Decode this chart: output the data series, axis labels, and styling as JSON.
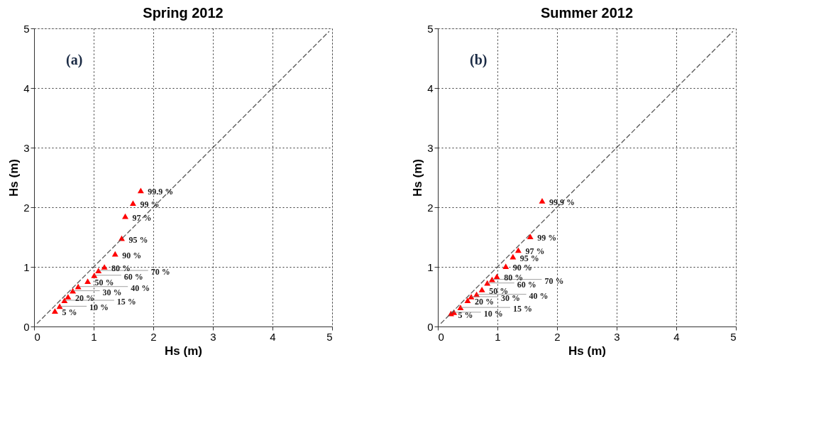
{
  "chart_data": [
    {
      "type": "scatter",
      "title": "Spring 2012",
      "xlabel": "Hs (m)",
      "ylabel": "Hs (m)",
      "xlim": [
        0,
        5
      ],
      "ylim": [
        0,
        5
      ],
      "xticks": [
        0,
        1,
        2,
        3,
        4,
        5
      ],
      "yticks": [
        0,
        1,
        2,
        3,
        4,
        5
      ],
      "grid": true,
      "marker": "triangle",
      "annotations": [
        "(a)",
        {
          "text": "5 %",
          "x": 0.35,
          "y": 0.26
        },
        {
          "text": "10 %",
          "x": 0.43,
          "y": 0.34
        },
        {
          "text": "15 %",
          "x": 0.51,
          "y": 0.44
        },
        {
          "text": "20 %",
          "x": 0.57,
          "y": 0.5
        },
        {
          "text": "30 %",
          "x": 0.65,
          "y": 0.6
        },
        {
          "text": "40 %",
          "x": 0.74,
          "y": 0.67
        },
        {
          "text": "50 %",
          "x": 0.9,
          "y": 0.76
        },
        {
          "text": "60 %",
          "x": 1.01,
          "y": 0.86
        },
        {
          "text": "70 %",
          "x": 1.08,
          "y": 0.94
        },
        {
          "text": "80 %",
          "x": 1.18,
          "y": 1.0
        },
        {
          "text": "90 %",
          "x": 1.36,
          "y": 1.22
        },
        {
          "text": "95 %",
          "x": 1.47,
          "y": 1.48
        },
        {
          "text": "97 %",
          "x": 1.53,
          "y": 1.85
        },
        {
          "text": "99 %",
          "x": 1.66,
          "y": 2.07
        },
        {
          "text": "99.9 %",
          "x": 1.79,
          "y": 2.28
        }
      ],
      "series": [
        {
          "type": "scatter",
          "color": "#ff0000",
          "x": [
            0.35,
            0.43,
            0.51,
            0.57,
            0.65,
            0.74,
            0.9,
            1.01,
            1.08,
            1.18,
            1.36,
            1.47,
            1.53,
            1.66,
            1.79
          ],
          "values": [
            0.26,
            0.34,
            0.44,
            0.5,
            0.6,
            0.67,
            0.76,
            0.86,
            0.94,
            1.0,
            1.22,
            1.48,
            1.85,
            2.07,
            2.28
          ]
        },
        {
          "type": "line",
          "color": "#555555",
          "line_style": "dashed",
          "marker": "none",
          "x": [
            0.05,
            4.95
          ],
          "values": [
            0.05,
            4.95
          ]
        }
      ]
    },
    {
      "type": "scatter",
      "title": "Summer 2012",
      "xlabel": "Hs (m)",
      "ylabel": "Hs (m)",
      "xlim": [
        0,
        5
      ],
      "ylim": [
        0,
        5
      ],
      "xticks": [
        0,
        1,
        2,
        3,
        4,
        5
      ],
      "yticks": [
        0,
        1,
        2,
        3,
        4,
        5
      ],
      "grid": true,
      "marker": "triangle",
      "annotations": [
        "(b)",
        {
          "text": "5 %",
          "x": 0.22,
          "y": 0.22
        },
        {
          "text": "10 %",
          "x": 0.27,
          "y": 0.24
        },
        {
          "text": "15 %",
          "x": 0.38,
          "y": 0.32
        },
        {
          "text": "20 %",
          "x": 0.5,
          "y": 0.44
        },
        {
          "text": "30 %",
          "x": 0.56,
          "y": 0.5
        },
        {
          "text": "40 %",
          "x": 0.65,
          "y": 0.54
        },
        {
          "text": "50 %",
          "x": 0.74,
          "y": 0.62
        },
        {
          "text": "60 %",
          "x": 0.83,
          "y": 0.73
        },
        {
          "text": "70 %",
          "x": 0.91,
          "y": 0.79
        },
        {
          "text": "80 %",
          "x": 0.99,
          "y": 0.84
        },
        {
          "text": "90 %",
          "x": 1.14,
          "y": 1.01
        },
        {
          "text": "95 %",
          "x": 1.26,
          "y": 1.17
        },
        {
          "text": "97 %",
          "x": 1.35,
          "y": 1.28
        },
        {
          "text": "99 %",
          "x": 1.55,
          "y": 1.51
        },
        {
          "text": "99.9 %",
          "x": 1.75,
          "y": 2.11
        }
      ],
      "series": [
        {
          "type": "scatter",
          "color": "#ff0000",
          "x": [
            0.22,
            0.27,
            0.38,
            0.5,
            0.56,
            0.65,
            0.74,
            0.83,
            0.91,
            0.99,
            1.14,
            1.26,
            1.35,
            1.55,
            1.75
          ],
          "values": [
            0.22,
            0.24,
            0.32,
            0.44,
            0.5,
            0.54,
            0.62,
            0.73,
            0.79,
            0.84,
            1.01,
            1.17,
            1.28,
            1.51,
            2.11
          ]
        },
        {
          "type": "line",
          "color": "#555555",
          "line_style": "dashed",
          "marker": "none",
          "x": [
            0.05,
            4.95
          ],
          "values": [
            0.05,
            4.95
          ]
        }
      ]
    }
  ]
}
